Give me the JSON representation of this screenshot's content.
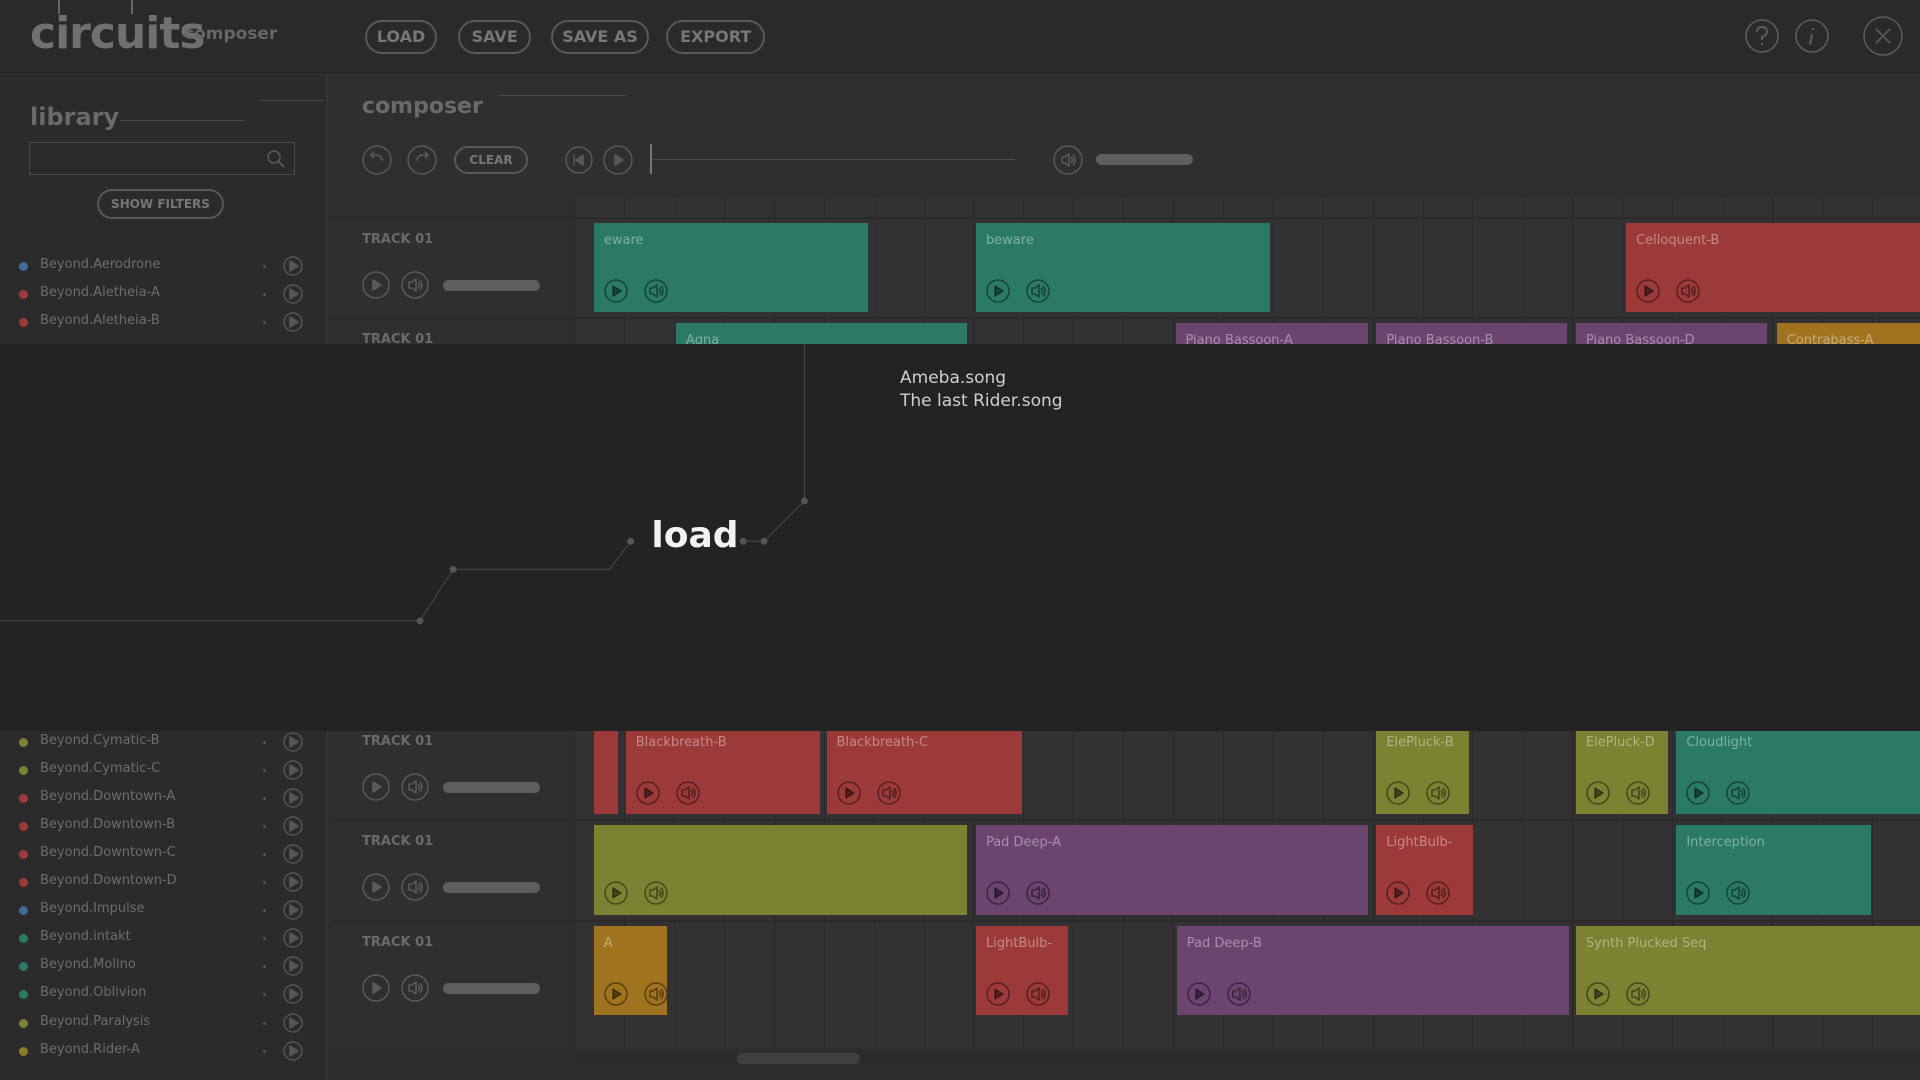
{
  "header": {
    "logo": "circuits",
    "subtitle": "composer",
    "buttons": [
      "LOAD",
      "SAVE",
      "SAVE AS",
      "EXPORT"
    ]
  },
  "library": {
    "title": "library",
    "filter_button": "SHOW FILTERS",
    "items": [
      {
        "name": "Beyond.Aerodrone",
        "color": "#3d6d99"
      },
      {
        "name": "Beyond.Aletheia-A",
        "color": "#9c3a3a"
      },
      {
        "name": "Beyond.Aletheia-B",
        "color": "#9c3a3a"
      },
      {
        "name": "Beyond.Cymatic-B",
        "color": "#7b8232"
      },
      {
        "name": "Beyond.Cymatic-C",
        "color": "#7b8232"
      },
      {
        "name": "Beyond.Downtown-A",
        "color": "#9c3a3a"
      },
      {
        "name": "Beyond.Downtown-B",
        "color": "#9c3a3a"
      },
      {
        "name": "Beyond.Downtown-C",
        "color": "#9c3a3a"
      },
      {
        "name": "Beyond.Downtown-D",
        "color": "#9c3a3a"
      },
      {
        "name": "Beyond.Impulse",
        "color": "#3d6d99"
      },
      {
        "name": "Beyond.intakt",
        "color": "#2a7a66"
      },
      {
        "name": "Beyond.Molino",
        "color": "#2a7a66"
      },
      {
        "name": "Beyond.Oblivion",
        "color": "#2a7a66"
      },
      {
        "name": "Beyond.Paralysis",
        "color": "#7b8232"
      },
      {
        "name": "Beyond.Rider-A",
        "color": "#8a7d2a"
      }
    ]
  },
  "composer": {
    "title": "composer",
    "clear_button": "CLEAR",
    "tracks": [
      {
        "label": "TRACK 01",
        "clips": [
          {
            "name": "eware",
            "color": "#2a7a66"
          },
          {
            "name": "beware",
            "color": "#2a7a66"
          },
          {
            "name": "Celloquent-B",
            "color": "#9c3a3a"
          }
        ]
      },
      {
        "label": "TRACK 01",
        "clips": [
          {
            "name": "Agna",
            "color": "#2a7a66"
          },
          {
            "name": "Piano Bassoon-A",
            "color": "#6b4470"
          },
          {
            "name": "Piano Bassoon-B",
            "color": "#6b4470"
          },
          {
            "name": "Piano Bassoon-D",
            "color": "#6b4470"
          },
          {
            "name": "Contrabass-A",
            "color": "#a0741f"
          }
        ]
      },
      {
        "label": "TRACK 01",
        "clips": [
          {
            "color": "#9c3a3a"
          },
          {
            "name": "Blackbreath-B",
            "color": "#9c3a3a"
          },
          {
            "name": "Blackbreath-C",
            "color": "#9c3a3a"
          },
          {
            "name": "ElePluck-B",
            "color": "#7b8232"
          },
          {
            "name": "ElePluck-D",
            "color": "#7b8232"
          },
          {
            "name": "Cloudlight",
            "color": "#2a7a66"
          }
        ]
      },
      {
        "label": "TRACK 01",
        "clips": [
          {
            "color": "#7b8232"
          },
          {
            "name": "Pad Deep-A",
            "color": "#6b4470"
          },
          {
            "name": "LightBulb-",
            "color": "#9c3a3a"
          },
          {
            "name": "Interception",
            "color": "#2a7a66"
          }
        ]
      },
      {
        "label": "TRACK 01",
        "clips": [
          {
            "name": "A",
            "color": "#a0741f"
          },
          {
            "name": "LightBulb-",
            "color": "#9c3a3a"
          },
          {
            "name": "Pad Deep-B",
            "color": "#6b4470"
          },
          {
            "name": "Synth Plucked Seq",
            "color": "#7b8232"
          }
        ]
      }
    ]
  },
  "load_dialog": {
    "title": "load",
    "files": [
      "Ameba.song",
      "The last Rider.song"
    ]
  }
}
